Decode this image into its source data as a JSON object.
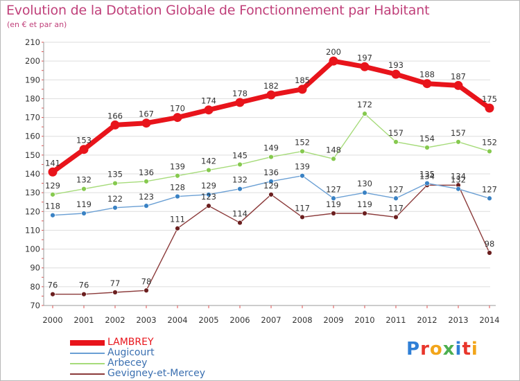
{
  "title": "Evolution de la Dotation Globale de Fonctionnement par Habitant",
  "subtitle": "(en € et par an)",
  "logo": {
    "text": "Proxiti",
    "letter_colors": [
      "#2f7fd6",
      "#e8352b",
      "#f2a51a",
      "#4caf50",
      "#2f7fd6",
      "#e8352b",
      "#f2a51a"
    ]
  },
  "colors": {
    "title": "#c0407a",
    "axis_text": "#333333",
    "grid": "#dddddd",
    "axis_tick": "#e05050"
  },
  "chart_data": {
    "type": "line",
    "x": [
      2000,
      2001,
      2002,
      2003,
      2004,
      2005,
      2006,
      2007,
      2008,
      2009,
      2010,
      2011,
      2012,
      2013,
      2014
    ],
    "ylim": [
      70,
      210
    ],
    "yticks": [
      70,
      80,
      90,
      100,
      110,
      120,
      130,
      140,
      150,
      160,
      170,
      180,
      190,
      200,
      210
    ],
    "grid": "horizontal",
    "legend_position": "bottom-left",
    "series": [
      {
        "name": "LAMBREY",
        "color": "#e8141b",
        "marker": "#e8141b",
        "values": [
          141,
          153,
          166,
          167,
          170,
          174,
          178,
          182,
          185,
          200,
          197,
          193,
          188,
          187,
          175
        ]
      },
      {
        "name": "Augicourt",
        "color": "#6a9fd4",
        "marker": "#3a82c4",
        "values": [
          118,
          119,
          122,
          123,
          128,
          129,
          132,
          136,
          139,
          127,
          130,
          127,
          135,
          132,
          127
        ]
      },
      {
        "name": "Arbecey",
        "color": "#a6db7a",
        "marker": "#86c94f",
        "values": [
          129,
          132,
          135,
          136,
          139,
          142,
          145,
          149,
          152,
          148,
          172,
          157,
          154,
          157,
          152
        ]
      },
      {
        "name": "Gevigney-et-Mercey",
        "color": "#8b3a3a",
        "marker": "#6b1f1f",
        "values": [
          76,
          76,
          77,
          78,
          111,
          123,
          114,
          129,
          117,
          119,
          119,
          117,
          134,
          134,
          98
        ]
      }
    ]
  }
}
